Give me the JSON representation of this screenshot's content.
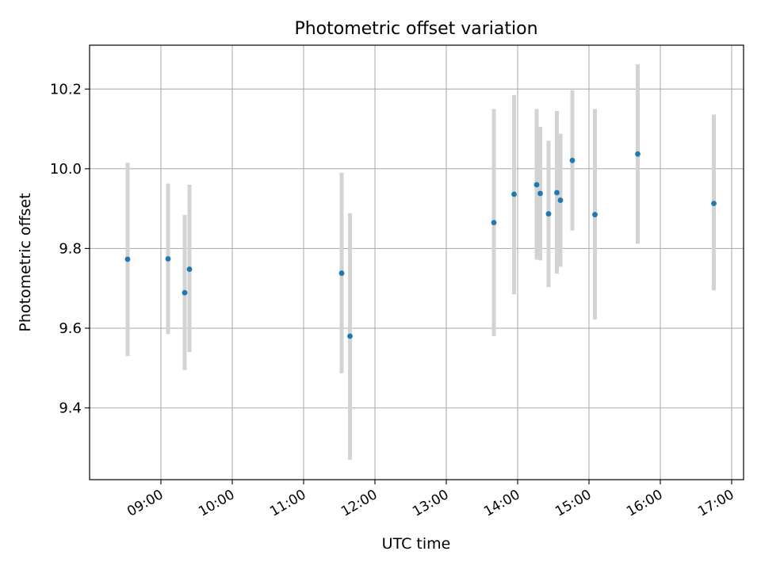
{
  "chart_data": {
    "type": "scatter",
    "title": "Photometric offset variation",
    "xlabel": "UTC time",
    "ylabel": "Photometric offset",
    "x_ticks": [
      "09:00",
      "10:00",
      "11:00",
      "12:00",
      "13:00",
      "14:00",
      "15:00",
      "16:00",
      "17:00"
    ],
    "y_ticks": [
      "9.4",
      "9.6",
      "9.8",
      "10.0",
      "10.2"
    ],
    "xlim": [
      "08:00",
      "17:10"
    ],
    "ylim": [
      9.22,
      10.31
    ],
    "grid": true,
    "marker_color": "#1f77b4",
    "errorbar_color": "#d3d3d3",
    "points": [
      {
        "time": "08:32",
        "value": 9.773,
        "low": 9.53,
        "high": 10.015
      },
      {
        "time": "09:06",
        "value": 9.774,
        "low": 9.585,
        "high": 9.963
      },
      {
        "time": "09:20",
        "value": 9.689,
        "low": 9.495,
        "high": 9.884
      },
      {
        "time": "09:24",
        "value": 9.748,
        "low": 9.54,
        "high": 9.96
      },
      {
        "time": "11:32",
        "value": 9.738,
        "low": 9.487,
        "high": 9.99
      },
      {
        "time": "11:39",
        "value": 9.58,
        "low": 9.27,
        "high": 9.888
      },
      {
        "time": "13:40",
        "value": 9.865,
        "low": 9.58,
        "high": 10.15
      },
      {
        "time": "13:57",
        "value": 9.936,
        "low": 9.685,
        "high": 10.185
      },
      {
        "time": "14:16",
        "value": 9.96,
        "low": 9.772,
        "high": 10.15
      },
      {
        "time": "14:19",
        "value": 9.938,
        "low": 9.77,
        "high": 10.105
      },
      {
        "time": "14:26",
        "value": 9.887,
        "low": 9.703,
        "high": 10.07
      },
      {
        "time": "14:33",
        "value": 9.94,
        "low": 9.737,
        "high": 10.145
      },
      {
        "time": "14:36",
        "value": 9.921,
        "low": 9.754,
        "high": 10.088
      },
      {
        "time": "14:46",
        "value": 10.021,
        "low": 9.845,
        "high": 10.197
      },
      {
        "time": "15:05",
        "value": 9.885,
        "low": 9.622,
        "high": 10.15
      },
      {
        "time": "15:41",
        "value": 10.037,
        "low": 9.812,
        "high": 10.262
      },
      {
        "time": "16:45",
        "value": 9.913,
        "low": 9.695,
        "high": 10.136
      }
    ]
  }
}
